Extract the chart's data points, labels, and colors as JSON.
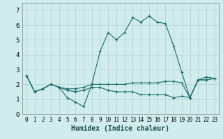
{
  "title": "",
  "xlabel": "Humidex (Indice chaleur)",
  "ylabel": "",
  "bg_color": "#d0ecec",
  "grid_color": "#b8d8d8",
  "line_color": "#1a6b6b",
  "marker": "+",
  "xlim": [
    -0.5,
    23.5
  ],
  "ylim": [
    0,
    7.5
  ],
  "xticks": [
    0,
    1,
    2,
    3,
    4,
    5,
    6,
    7,
    8,
    9,
    10,
    11,
    12,
    13,
    14,
    15,
    16,
    17,
    18,
    19,
    20,
    21,
    22,
    23
  ],
  "yticks": [
    0,
    1,
    2,
    3,
    4,
    5,
    6,
    7
  ],
  "series": [
    [
      2.6,
      1.5,
      1.7,
      2.0,
      1.8,
      1.1,
      0.8,
      0.5,
      2.0,
      4.2,
      5.5,
      5.0,
      5.5,
      6.5,
      6.2,
      6.6,
      6.2,
      6.1,
      4.6,
      2.8,
      1.1,
      2.3,
      2.5,
      2.4
    ],
    [
      2.6,
      1.5,
      1.7,
      2.0,
      1.8,
      1.7,
      1.7,
      1.8,
      2.0,
      2.0,
      2.0,
      2.0,
      2.0,
      2.1,
      2.1,
      2.1,
      2.1,
      2.2,
      2.2,
      2.1,
      1.1,
      2.3,
      2.3,
      2.4
    ],
    [
      2.6,
      1.5,
      1.7,
      2.0,
      1.8,
      1.6,
      1.5,
      1.6,
      1.8,
      1.8,
      1.6,
      1.5,
      1.5,
      1.5,
      1.3,
      1.3,
      1.3,
      1.3,
      1.1,
      1.2,
      1.1,
      2.3,
      2.3,
      2.4
    ]
  ]
}
